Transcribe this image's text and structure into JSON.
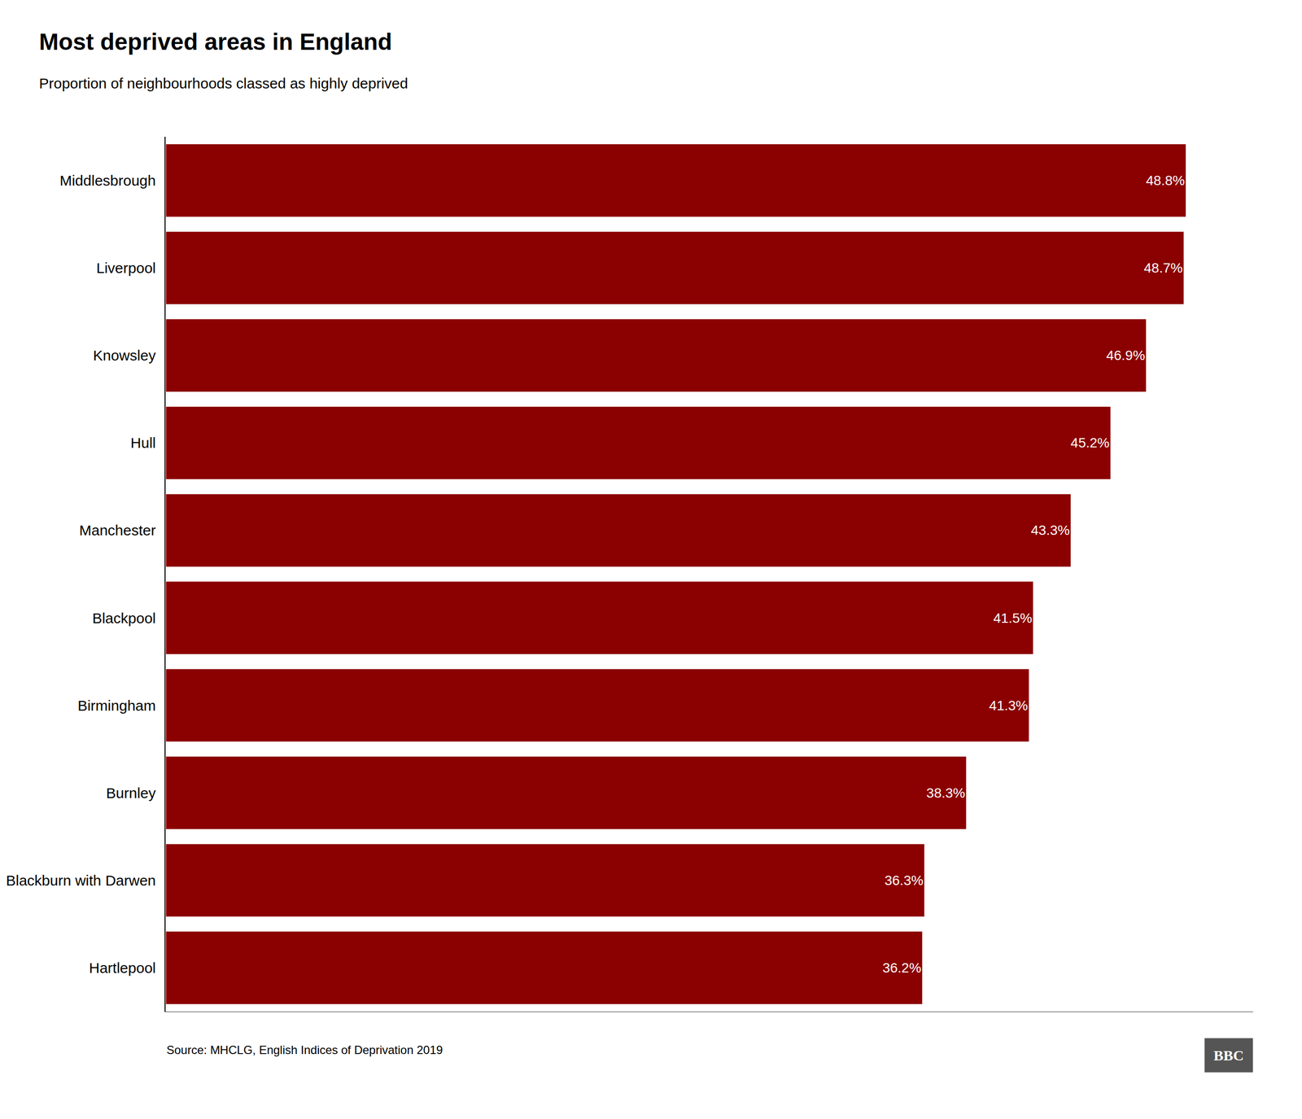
{
  "chart_data": {
    "type": "bar",
    "orientation": "horizontal",
    "title": "Most deprived areas in England",
    "subtitle": "Proportion of neighbourhoods classed as highly deprived",
    "annotations": [
      "Source: MHCLG, English Indices of Deprivation 2019",
      "BBC"
    ],
    "categories": [
      "Middlesbrough",
      "Liverpool",
      "Knowsley",
      "Hull",
      "Manchester",
      "Blackpool",
      "Birmingham",
      "Burnley",
      "Blackburn with Darwen",
      "Hartlepool"
    ],
    "values": [
      48.8,
      48.7,
      46.9,
      45.2,
      43.3,
      41.5,
      41.3,
      38.3,
      36.3,
      36.2
    ],
    "value_labels": [
      "48.8%",
      "48.7%",
      "46.9%",
      "45.2%",
      "43.3%",
      "41.5%",
      "41.3%",
      "38.3%",
      "36.3%",
      "36.2%"
    ],
    "data_labels": true,
    "color": "#8B0000",
    "xlim": [
      0,
      52
    ],
    "grid": false,
    "tick_labels": "y"
  }
}
